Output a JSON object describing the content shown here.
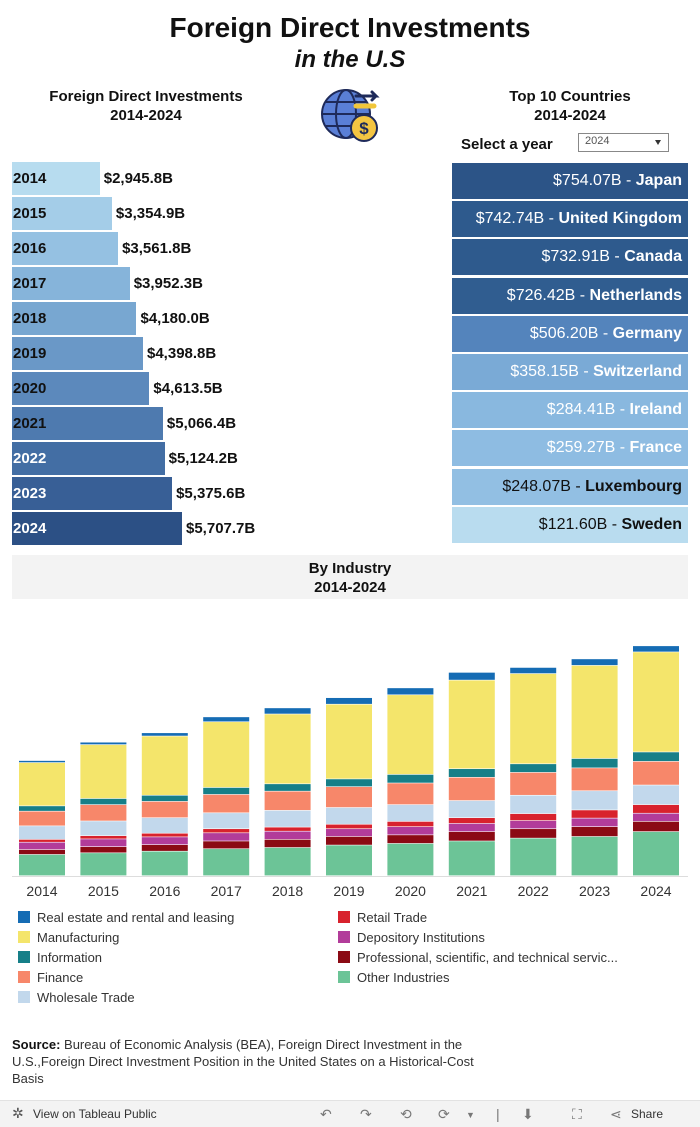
{
  "title": "Foreign Direct Investments",
  "subtitle": "in the U.S",
  "left_section": {
    "title_line1": "Foreign Direct Investments",
    "title_line2": "2014-2024"
  },
  "right_section": {
    "title_line1": "Top 10 Countries",
    "title_line2": "2014-2024",
    "select_label": "Select a year",
    "selected_year": "2024"
  },
  "industry_section": {
    "title_line1": "By Industry",
    "title_line2": "2014-2024"
  },
  "source": {
    "label": "Source:",
    "text": "Bureau of Economic Analysis (BEA), Foreign Direct Investment in the U.S.,Foreign Direct Investment Position in the United States on a Historical-Cost Basis"
  },
  "toolbar": {
    "view_link": "View on Tableau Public",
    "share_label": "Share"
  },
  "icons": {
    "globe": "globe-dollar-icon",
    "tableau": "tableau-logo-icon",
    "undo": "undo-icon",
    "redo": "redo-icon",
    "revert": "revert-icon",
    "refresh": "refresh-icon",
    "download": "download-icon",
    "fullscreen": "fullscreen-icon",
    "share": "share-icon"
  },
  "chart_data": [
    {
      "type": "bar",
      "orientation": "horizontal",
      "title": "Foreign Direct Investments 2014-2024",
      "categories": [
        "2014",
        "2015",
        "2016",
        "2017",
        "2018",
        "2019",
        "2020",
        "2021",
        "2022",
        "2023",
        "2024"
      ],
      "values": [
        2945.8,
        3354.9,
        3561.8,
        3952.3,
        4180.0,
        4398.8,
        4613.5,
        5066.4,
        5124.2,
        5375.6,
        5707.7
      ],
      "labels": [
        "$2,945.8B",
        "$3,354.9B",
        "$3,561.8B",
        "$3,952.3B",
        "$4,180.0B",
        "$4,398.8B",
        "$4,613.5B",
        "$5,066.4B",
        "$5,124.2B",
        "$5,375.6B",
        "$5,707.7B"
      ],
      "unit": "$B",
      "colors": [
        "#b7dcef",
        "#a4cde8",
        "#95c1e2",
        "#86b4da",
        "#78a7d1",
        "#6a98c7",
        "#5c89bc",
        "#4e7aaf",
        "#436ea4",
        "#385f96",
        "#2c5085"
      ]
    },
    {
      "type": "table",
      "title": "Top 10 Countries 2014-2024",
      "year": "2024",
      "rows": [
        {
          "value": 754.07,
          "label": "$754.07B",
          "country": "Japan",
          "color": "#2c5487"
        },
        {
          "value": 742.74,
          "label": "$742.74B",
          "country": "United Kingdom",
          "color": "#2e5a8d"
        },
        {
          "value": 732.91,
          "label": "$732.91B",
          "country": "Canada",
          "color": "#2e5a8d"
        },
        {
          "value": 726.42,
          "label": "$726.42B",
          "country": "Netherlands",
          "color": "#305d90"
        },
        {
          "value": 506.2,
          "label": "$506.20B",
          "country": "Germany",
          "color": "#5484bc"
        },
        {
          "value": 358.15,
          "label": "$358.15B",
          "country": "Switzerland",
          "color": "#7aaad6"
        },
        {
          "value": 284.41,
          "label": "$284.41B",
          "country": "Ireland",
          "color": "#89b8df"
        },
        {
          "value": 259.27,
          "label": "$259.27B",
          "country": "France",
          "color": "#8ebce2"
        },
        {
          "value": 248.07,
          "label": "$248.07B",
          "country": "Luxembourg",
          "color": "#92bfe3"
        },
        {
          "value": 121.6,
          "label": "$121.60B",
          "country": "Sweden",
          "color": "#b9dcef"
        }
      ]
    },
    {
      "type": "bar",
      "stacked": true,
      "title": "By Industry 2014-2024",
      "categories": [
        "2014",
        "2015",
        "2016",
        "2017",
        "2018",
        "2019",
        "2020",
        "2021",
        "2022",
        "2023",
        "2024"
      ],
      "ylim": [
        0,
        6000
      ],
      "series": [
        {
          "name": "Other Industries",
          "color": "#6cc497",
          "values": [
            520,
            560,
            600,
            660,
            690,
            750,
            790,
            850,
            920,
            960,
            1080
          ]
        },
        {
          "name": "Professional, scientific, and technical servic...",
          "color": "#8b0a14",
          "values": [
            120,
            150,
            160,
            190,
            200,
            210,
            210,
            230,
            230,
            240,
            250
          ]
        },
        {
          "name": "Depository Institutions",
          "color": "#b23c9a",
          "values": [
            180,
            190,
            190,
            200,
            200,
            190,
            200,
            200,
            200,
            210,
            200
          ]
        },
        {
          "name": "Retail Trade",
          "color": "#d8222d",
          "values": [
            70,
            80,
            90,
            100,
            100,
            110,
            130,
            140,
            170,
            200,
            210
          ]
        },
        {
          "name": "Wholesale Trade",
          "color": "#c2d8ec",
          "values": [
            330,
            360,
            380,
            390,
            410,
            410,
            410,
            420,
            450,
            470,
            480
          ]
        },
        {
          "name": "Finance",
          "color": "#f7876a",
          "values": [
            360,
            400,
            400,
            450,
            470,
            510,
            530,
            570,
            560,
            560,
            580
          ]
        },
        {
          "name": "Information",
          "color": "#167f88",
          "values": [
            130,
            150,
            150,
            170,
            180,
            190,
            210,
            210,
            210,
            230,
            230
          ]
        },
        {
          "name": "Manufacturing",
          "color": "#f4e56b",
          "values": [
            1060,
            1320,
            1450,
            1610,
            1710,
            1830,
            1950,
            2170,
            2210,
            2280,
            2450
          ]
        },
        {
          "name": "Real estate and rental and leasing",
          "color": "#156cb4",
          "values": [
            50,
            60,
            80,
            120,
            150,
            160,
            170,
            190,
            150,
            160,
            150
          ]
        }
      ],
      "legend": [
        "Real estate and rental and leasing",
        "Manufacturing",
        "Information",
        "Finance",
        "Wholesale Trade",
        "Retail Trade",
        "Depository Institutions",
        "Professional, scientific, and technical servic...",
        "Other Industries"
      ],
      "legend_position": "bottom"
    }
  ]
}
